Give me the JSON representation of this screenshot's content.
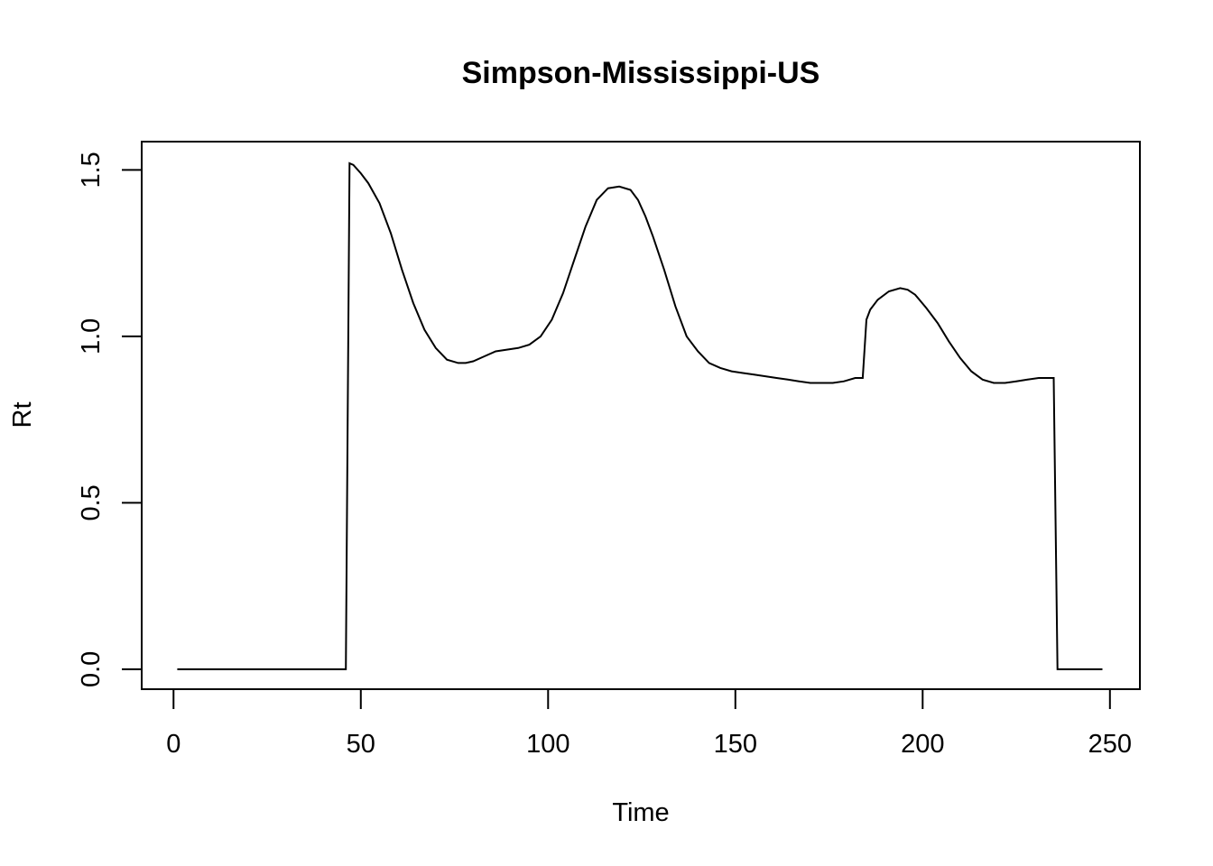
{
  "chart_data": {
    "type": "line",
    "title": "Simpson-Mississippi-US",
    "xlabel": "Time",
    "ylabel": "Rt",
    "xlim": [
      -8.5,
      258
    ],
    "ylim": [
      -0.06,
      1.585
    ],
    "xticks": [
      0,
      50,
      100,
      150,
      200,
      250
    ],
    "yticks": [
      0.0,
      0.5,
      1.0,
      1.5
    ],
    "xtick_labels": [
      "0",
      "50",
      "100",
      "150",
      "200",
      "250"
    ],
    "ytick_labels": [
      "0.0",
      "0.5",
      "1.0",
      "1.5"
    ],
    "grid": false,
    "line_color": "#000000",
    "series": [
      {
        "x": [
          1,
          10,
          20,
          30,
          40,
          46,
          47,
          48,
          50,
          52,
          55,
          58,
          61,
          64,
          67,
          70,
          73,
          76,
          78,
          80,
          83,
          86,
          89,
          92,
          95,
          98,
          101,
          104,
          107,
          110,
          113,
          116,
          119,
          122,
          124,
          126,
          128,
          131,
          134,
          137,
          140,
          143,
          146,
          149,
          152,
          155,
          158,
          161,
          164,
          167,
          170,
          173,
          176,
          179,
          182,
          184,
          185,
          186,
          188,
          191,
          194,
          196,
          198,
          201,
          204,
          207,
          210,
          213,
          216,
          219,
          222,
          225,
          228,
          231,
          233,
          235,
          236,
          237,
          240,
          245,
          248
        ],
        "y": [
          0.0,
          0.0,
          0.0,
          0.0,
          0.0,
          0.0,
          1.52,
          1.515,
          1.49,
          1.46,
          1.4,
          1.31,
          1.2,
          1.1,
          1.02,
          0.965,
          0.93,
          0.92,
          0.92,
          0.925,
          0.94,
          0.955,
          0.96,
          0.965,
          0.975,
          1.0,
          1.05,
          1.13,
          1.23,
          1.33,
          1.41,
          1.445,
          1.45,
          1.44,
          1.41,
          1.36,
          1.3,
          1.2,
          1.09,
          1.0,
          0.955,
          0.92,
          0.905,
          0.895,
          0.89,
          0.885,
          0.88,
          0.875,
          0.87,
          0.865,
          0.86,
          0.86,
          0.86,
          0.865,
          0.875,
          0.875,
          1.05,
          1.08,
          1.11,
          1.135,
          1.145,
          1.14,
          1.125,
          1.085,
          1.04,
          0.985,
          0.935,
          0.895,
          0.87,
          0.86,
          0.86,
          0.865,
          0.87,
          0.875,
          0.875,
          0.875,
          0.0,
          0.0,
          0.0,
          0.0,
          0.0
        ]
      }
    ]
  }
}
